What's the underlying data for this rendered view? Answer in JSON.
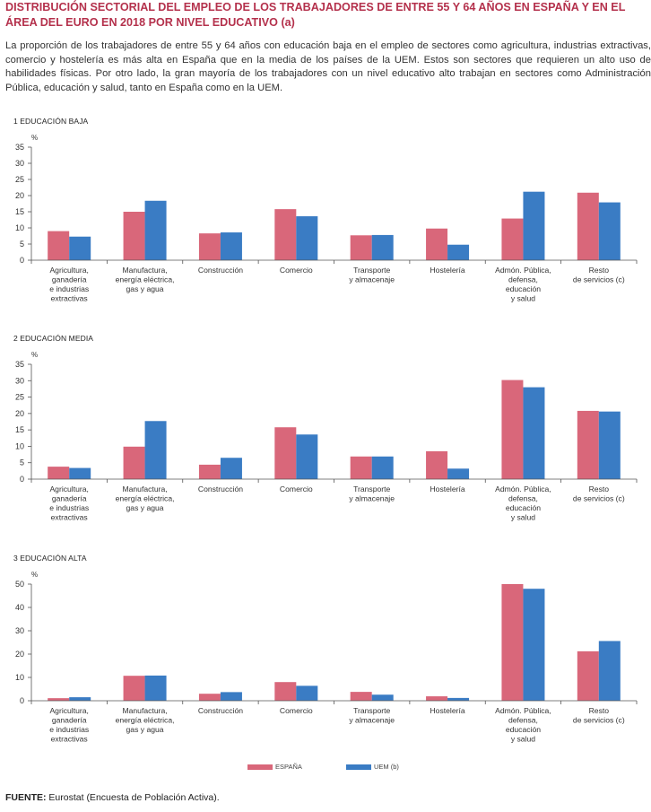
{
  "header": {
    "title": "DISTRIBUCIÓN SECTORIAL DEL EMPLEO DE LOS TRABAJADORES DE ENTRE 55 Y 64 AÑOS EN ESPAÑA Y EN EL ÁREA DEL EURO EN 2018 POR NIVEL EDUCATIVO (a)",
    "intro": "La proporción de los trabajadores de entre 55 y 64 años con educación baja en el empleo de sectores como agricultura, industrias extractivas, comercio y hostelería es más alta en España que en la media de los países de la UEM. Estos son sectores que requieren un alto uso de habilidades físicas. Por otro lado, la gran mayoría de los trabajadores con un nivel educativo alto trabajan en sectores como Administración Pública, educación y salud, tanto en España como en la UEM."
  },
  "colors": {
    "espana": "#d9677a",
    "uem": "#3a7cc4",
    "axis": "#555555",
    "title": "#b4314c"
  },
  "legend": {
    "espana": "ESPAÑA",
    "uem": "UEM (b)"
  },
  "categories": [
    [
      "Agricultura,",
      "ganadería",
      "e industrias",
      "extractivas"
    ],
    [
      "Manufactura,",
      "energía eléctrica,",
      "gas y agua"
    ],
    [
      "Construcción"
    ],
    [
      "Comercio"
    ],
    [
      "Transporte",
      "y almacenaje"
    ],
    [
      "Hostelería"
    ],
    [
      "Admón. Pública,",
      "defensa,",
      "educación",
      "y salud"
    ],
    [
      "Resto",
      "de servicios (c)"
    ]
  ],
  "chart_data": [
    {
      "type": "bar",
      "label": "1  EDUCACIÓN BAJA",
      "unit": "%",
      "ylim": [
        0,
        35
      ],
      "yticks": [
        0,
        5,
        10,
        15,
        20,
        25,
        30,
        35
      ],
      "series": [
        {
          "name": "ESPAÑA",
          "values": [
            9.0,
            15.0,
            8.3,
            15.8,
            7.7,
            9.8,
            12.9,
            20.9
          ]
        },
        {
          "name": "UEM (b)",
          "values": [
            7.3,
            18.4,
            8.6,
            13.6,
            7.8,
            4.8,
            21.2,
            17.9
          ]
        }
      ]
    },
    {
      "type": "bar",
      "label": "2  EDUCACIÓN MEDIA",
      "unit": "%",
      "ylim": [
        0,
        35
      ],
      "yticks": [
        0,
        5,
        10,
        15,
        20,
        25,
        30,
        35
      ],
      "series": [
        {
          "name": "ESPAÑA",
          "values": [
            3.8,
            9.9,
            4.4,
            15.8,
            6.9,
            8.5,
            30.2,
            20.8
          ]
        },
        {
          "name": "UEM (b)",
          "values": [
            3.4,
            17.7,
            6.5,
            13.6,
            6.9,
            3.2,
            28.0,
            20.6
          ]
        }
      ]
    },
    {
      "type": "bar",
      "label": "3  EDUCACIÓN ALTA",
      "unit": "%",
      "ylim": [
        0,
        50
      ],
      "yticks": [
        0,
        10,
        20,
        30,
        40,
        50
      ],
      "series": [
        {
          "name": "ESPAÑA",
          "values": [
            1.1,
            10.7,
            3.0,
            8.0,
            3.8,
            1.9,
            50.0,
            21.2
          ]
        },
        {
          "name": "UEM (b)",
          "values": [
            1.5,
            10.8,
            3.7,
            6.4,
            2.6,
            1.2,
            48.0,
            25.6
          ]
        }
      ]
    }
  ],
  "footer": {
    "source_label": "FUENTE:",
    "source_text": " Eurostat (Encuesta de Población Activa)."
  }
}
